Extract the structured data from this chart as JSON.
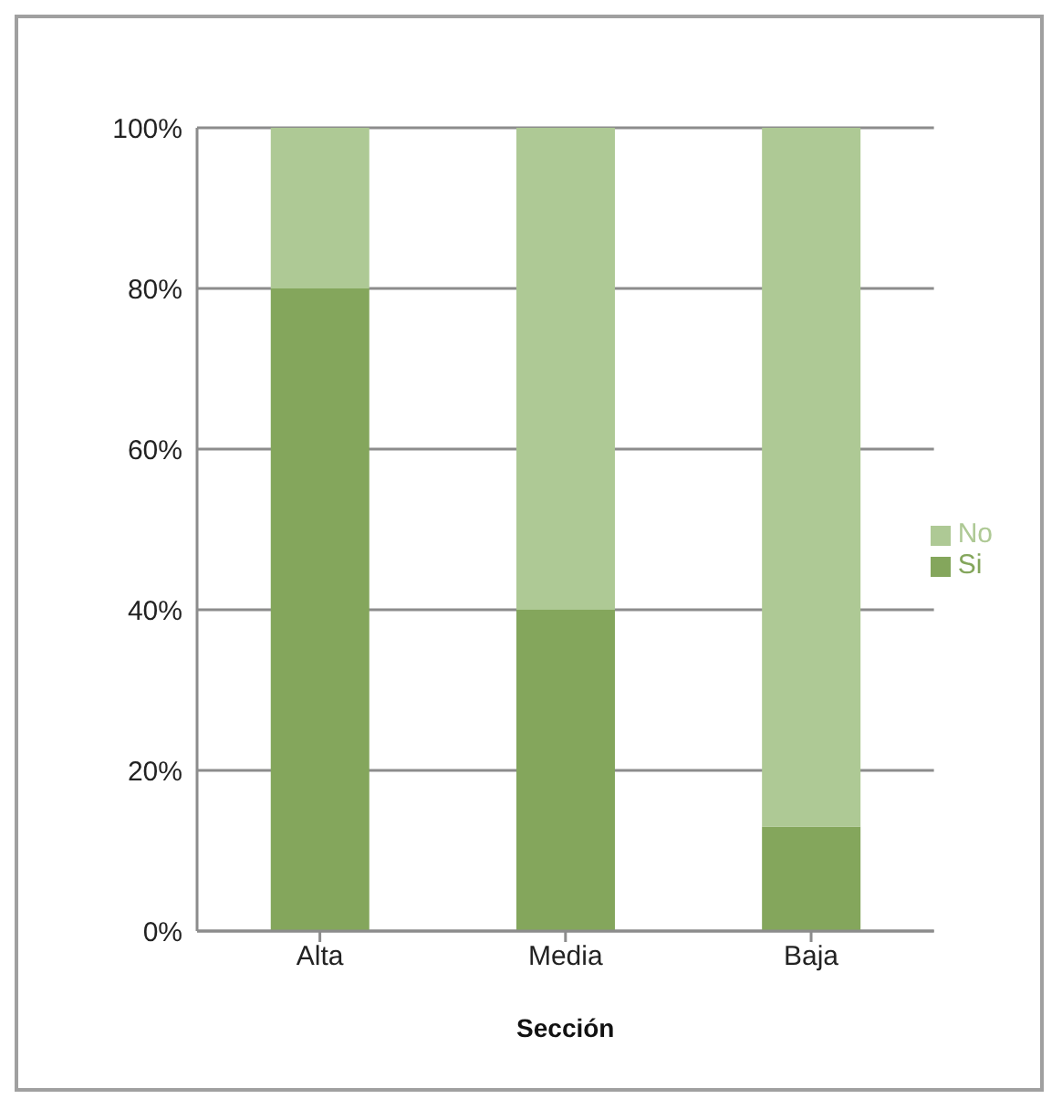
{
  "chart_data": {
    "type": "bar",
    "stacked": true,
    "xlabel": "Sección",
    "categories": [
      "Alta",
      "Media",
      "Baja"
    ],
    "series": [
      {
        "name": "Si",
        "color": "#84a65c",
        "values": [
          80,
          40,
          13
        ]
      },
      {
        "name": "No",
        "color": "#aec995",
        "values": [
          20,
          60,
          87
        ]
      }
    ],
    "ylim": [
      0,
      100
    ],
    "yticks": [
      {
        "value": 0,
        "label": "0%"
      },
      {
        "value": 20,
        "label": "20%"
      },
      {
        "value": 40,
        "label": "40%"
      },
      {
        "value": 60,
        "label": "60%"
      },
      {
        "value": 80,
        "label": "80%"
      },
      {
        "value": 100,
        "label": "100%"
      }
    ],
    "grid": "y",
    "legend": "right"
  }
}
